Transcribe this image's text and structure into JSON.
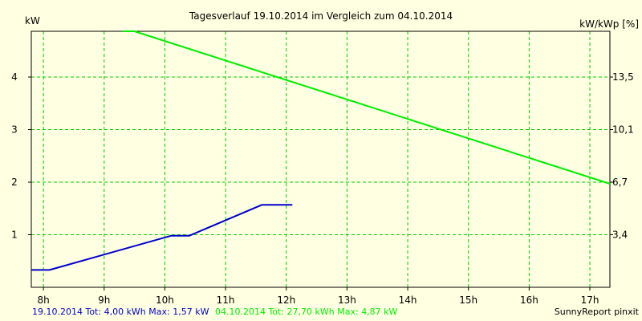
{
  "colors": {
    "background": "#ffffe1",
    "grid": "#00cc00",
    "series_today": "#0000cc",
    "series_compare": "#00ee00",
    "axis": "#000000"
  },
  "chart_data": {
    "type": "line",
    "title": "Tagesverlauf 19.10.2014 im Vergleich zum 04.10.2014",
    "ylabel_left": "kW",
    "ylabel_right": "kW/kWp [%]",
    "x_ticks": [
      "8h",
      "9h",
      "10h",
      "11h",
      "12h",
      "13h",
      "14h",
      "15h",
      "16h",
      "17h"
    ],
    "y_ticks_left": [
      "1",
      "2",
      "3",
      "4"
    ],
    "y_ticks_right": [
      "3,4",
      "6,7",
      "10,1",
      "13,5"
    ],
    "xlim": [
      7.8,
      17.33
    ],
    "ylim": [
      0,
      4.87
    ],
    "grid": true,
    "series": [
      {
        "name": "19.10.2014",
        "x": [
          7.8,
          8.1,
          10.1,
          10.4,
          11.6,
          12.1
        ],
        "y": [
          0.33,
          0.33,
          0.98,
          0.98,
          1.57,
          1.57
        ]
      },
      {
        "name": "04.10.2014",
        "x": [
          9.3,
          9.5,
          17.33
        ],
        "y": [
          4.87,
          4.87,
          1.97
        ]
      }
    ],
    "footer": {
      "today_summary": "19.10.2014 Tot: 4,00 kWh Max: 1,57 kW",
      "compare_summary": "04.10.2014 Tot: 27,70 kWh Max: 4,87 kW",
      "credit": "SunnyReport pinxit"
    }
  }
}
